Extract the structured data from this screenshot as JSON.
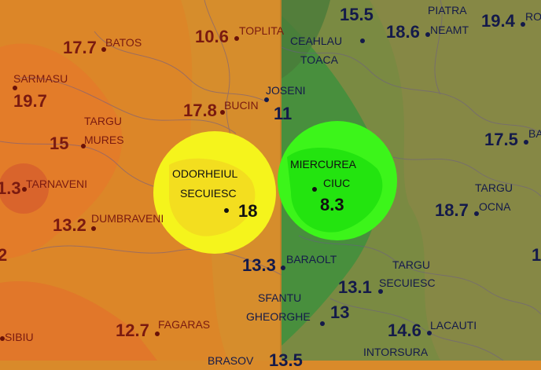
{
  "colors": {
    "warm_region": "#d98a2a",
    "cool_region": "#6f8a3f",
    "green_zone": "#3f9a3a",
    "highlight_yellow": "#f5f41c",
    "highlight_green": "#3cf51a",
    "warm_text": "#7a1a10",
    "cool_text": "#141a4a"
  },
  "stations": [
    {
      "id": "batos",
      "name": "BATOS",
      "value": "17.7",
      "zone": "warm"
    },
    {
      "id": "toplita",
      "name": "TOPLITA",
      "value": "10.6",
      "zone": "warm"
    },
    {
      "id": "sarmasu",
      "name": "SARMASU",
      "value": "19.7",
      "zone": "warm"
    },
    {
      "id": "bucin",
      "name": "BUCIN",
      "value": "17.8",
      "zone": "warm"
    },
    {
      "id": "targu-mures",
      "name": "TARGU\nMURES",
      "value": "15",
      "zone": "warm"
    },
    {
      "id": "tarnaveni",
      "name": "TARNAVENI",
      "value": "1.3",
      "zone": "warm"
    },
    {
      "id": "dumbraveni",
      "name": "DUMBRAVENI",
      "value": "13.2",
      "zone": "warm"
    },
    {
      "id": "west-edge",
      "name": "",
      "value": "2",
      "zone": "warm"
    },
    {
      "id": "fagaras",
      "name": "FAGARAS",
      "value": "12.7",
      "zone": "warm"
    },
    {
      "id": "sibiu",
      "name": "SIBIU",
      "value": "",
      "zone": "warm"
    },
    {
      "id": "joseni",
      "name": "JOSENI",
      "value": "11",
      "zone": "cool"
    },
    {
      "id": "ceahlau-toaca",
      "name": "CEAHLAU\nTOACA",
      "value": "15.5",
      "zone": "cool"
    },
    {
      "id": "piatra-neamt",
      "name": "PIATRA\nNEAMT",
      "value": "18.6",
      "zone": "cool"
    },
    {
      "id": "roman",
      "name": "RO",
      "value": "19.4",
      "zone": "cool"
    },
    {
      "id": "bacau",
      "name": "BA",
      "value": "17.5",
      "zone": "cool"
    },
    {
      "id": "targu-ocna",
      "name": "TARGU\nOCNA",
      "value": "18.7",
      "zone": "cool"
    },
    {
      "id": "baraolt",
      "name": "BARAOLT",
      "value": "13.3",
      "zone": "cool"
    },
    {
      "id": "targu-secuiesc",
      "name": "TARGU\nSECUIESC",
      "value": "13.1",
      "zone": "cool"
    },
    {
      "id": "sfantu-gheorghe",
      "name": "SFANTU\nGHEORGHE",
      "value": "13",
      "zone": "cool"
    },
    {
      "id": "lacauti",
      "name": "LACAUTI",
      "value": "14.6",
      "zone": "cool"
    },
    {
      "id": "intorsura",
      "name": "INTORSURA",
      "value": "",
      "zone": "cool"
    },
    {
      "id": "brasov",
      "name": "BRASOV",
      "value": "13.5",
      "zone": "cool"
    },
    {
      "id": "east-edge",
      "name": "",
      "value": "1",
      "zone": "cool"
    },
    {
      "id": "odorheiul-secuiesc",
      "name": "ODORHEIUL\nSECUIESC",
      "value": "18",
      "zone": "highlight"
    },
    {
      "id": "miercurea-ciuc",
      "name": "MIERCUREA\nCIUC",
      "value": "8.3",
      "zone": "highlight"
    }
  ]
}
